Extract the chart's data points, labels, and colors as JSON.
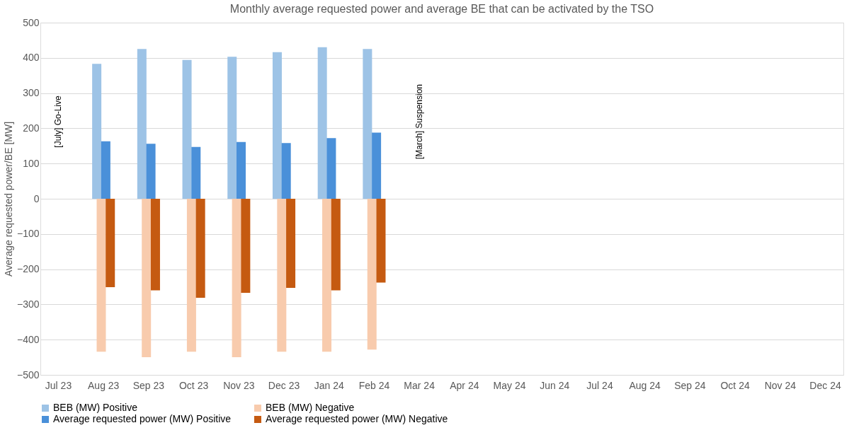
{
  "chart_data": {
    "type": "bar",
    "title": "Monthly average requested power and average BE that can be activated by the TSO",
    "ylabel": "Average requested power/BE [MW]",
    "categories": [
      "Jul 23",
      "Aug 23",
      "Sep 23",
      "Oct 23",
      "Nov 23",
      "Dec 23",
      "Jan 24",
      "Feb 24",
      "Mar 24",
      "Apr 24",
      "May 24",
      "Jun 24",
      "Jul 24",
      "Aug 24",
      "Sep 24",
      "Oct 24",
      "Nov 24",
      "Dec 24"
    ],
    "series": [
      {
        "name": "BEB (MW) Positive",
        "color": "#9dc3e6",
        "values": [
          null,
          383,
          425,
          394,
          403,
          416,
          430,
          425,
          null,
          null,
          null,
          null,
          null,
          null,
          null,
          null,
          null,
          null
        ]
      },
      {
        "name": "BEB (MW) Negative",
        "color": "#f8cbad",
        "values": [
          null,
          -434,
          -450,
          -434,
          -450,
          -434,
          -434,
          -428,
          null,
          null,
          null,
          null,
          null,
          null,
          null,
          null,
          null,
          null
        ]
      },
      {
        "name": "Average requested power (MW) Positive",
        "color": "#4a90d9",
        "values": [
          null,
          163,
          156,
          147,
          161,
          158,
          172,
          188,
          null,
          null,
          null,
          null,
          null,
          null,
          null,
          null,
          null,
          null
        ]
      },
      {
        "name": "Average requested power (MW) Negative",
        "color": "#c55a11",
        "values": [
          null,
          -251,
          -260,
          -281,
          -267,
          -253,
          -260,
          -238,
          null,
          null,
          null,
          null,
          null,
          null,
          null,
          null,
          null,
          null
        ]
      }
    ],
    "ylim": [
      -500,
      500
    ],
    "yticks": [
      -500,
      -400,
      -300,
      -200,
      -100,
      0,
      100,
      200,
      300,
      400,
      500
    ],
    "grid": "y",
    "legend": "bottom",
    "annotations": [
      "[July] Go-Live",
      "[March] Suspension"
    ]
  }
}
